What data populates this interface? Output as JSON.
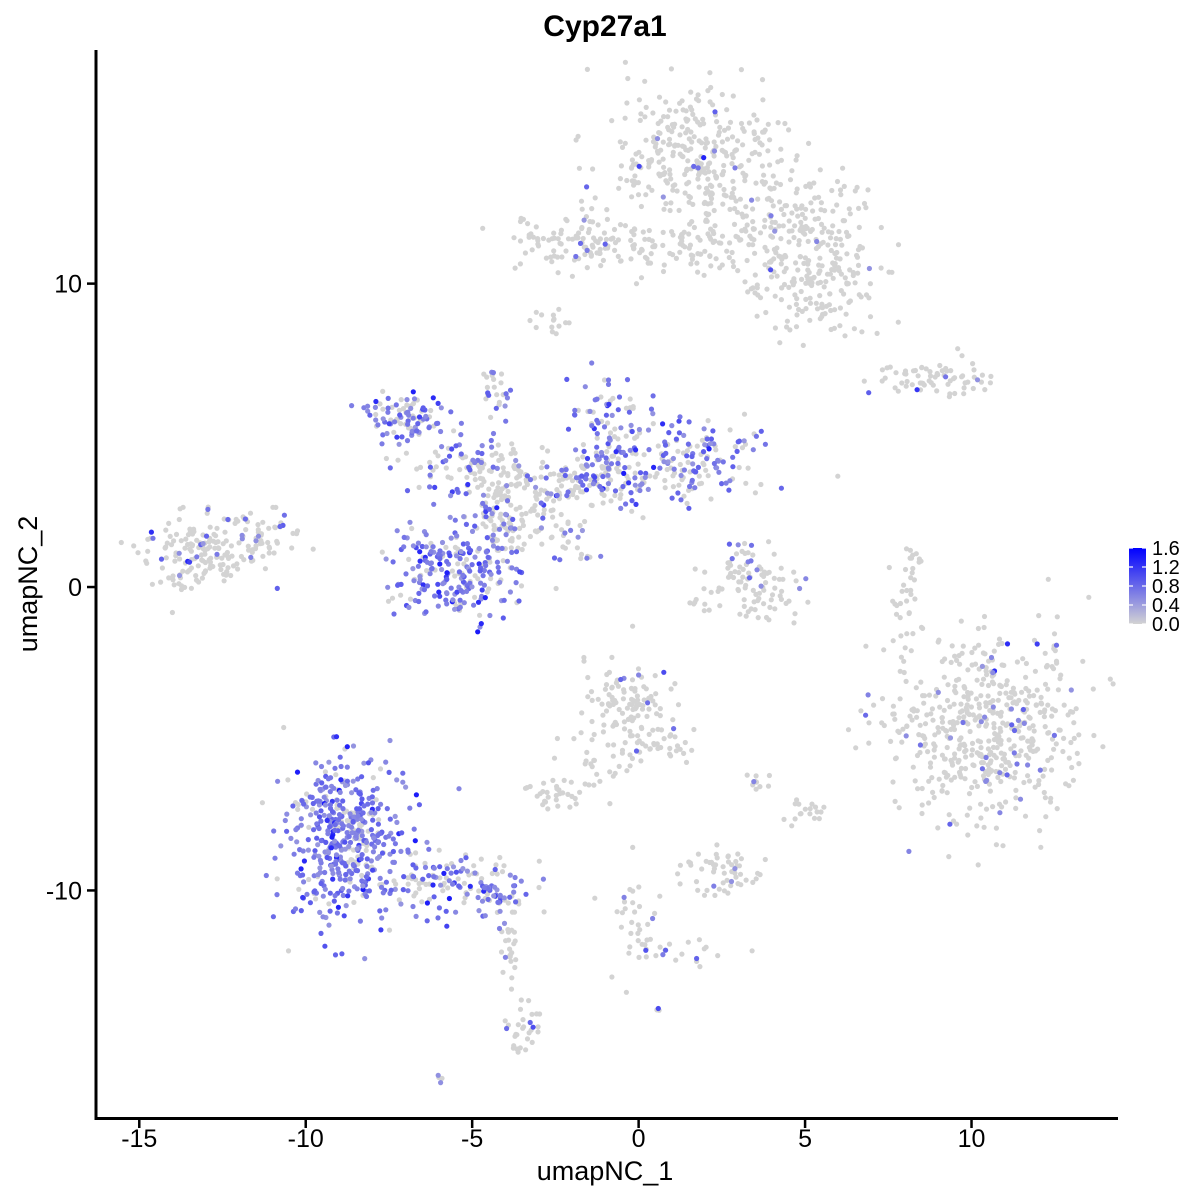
{
  "chart_data": {
    "type": "scatter",
    "title": "Cyp27a1",
    "xlabel": "umapNC_1",
    "ylabel": "umapNC_2",
    "xlim": [
      -16.3,
      14.4
    ],
    "ylim": [
      -17.5,
      17.7
    ],
    "x_ticks": [
      -15,
      -10,
      -5,
      0,
      5,
      10
    ],
    "x_tick_labels": [
      "-15",
      "-10",
      "-5",
      "0",
      "5",
      "10"
    ],
    "y_ticks": [
      -10,
      0,
      10
    ],
    "y_tick_labels": [
      "-10",
      "0",
      "10"
    ],
    "grid": false,
    "legend": {
      "position": "right",
      "type": "colorbar",
      "range": [
        0,
        1.6
      ],
      "ticks": [
        1.6,
        1.2,
        0.8,
        0.4,
        0.0
      ],
      "tick_labels": [
        "1.6",
        "1.2",
        "0.8",
        "0.4",
        "0.0"
      ],
      "low_color": "#d3d3d3",
      "high_color": "#0000ff"
    },
    "clusters": [
      {
        "name": "top-right-blob",
        "cx": 1.6,
        "cy": 14.2,
        "sx": 1.3,
        "sy": 1.1,
        "n": 320,
        "expr": 0.02
      },
      {
        "name": "top-right-wing",
        "cx": 4.4,
        "cy": 11.7,
        "sx": 1.3,
        "sy": 1.0,
        "n": 230,
        "expr": 0.02
      },
      {
        "name": "top-right-arm",
        "cx": 5.6,
        "cy": 9.8,
        "sx": 0.8,
        "sy": 0.8,
        "n": 110,
        "expr": 0.02
      },
      {
        "name": "top-left-arm",
        "cx": -1.5,
        "cy": 11.4,
        "sx": 1.2,
        "sy": 0.5,
        "n": 110,
        "expr": 0.03
      },
      {
        "name": "top-stem",
        "cx": 1.2,
        "cy": 11.2,
        "sx": 1.2,
        "sy": 0.4,
        "n": 70,
        "expr": 0.03
      },
      {
        "name": "small-top-left",
        "cx": -2.6,
        "cy": 8.9,
        "sx": 0.25,
        "sy": 0.3,
        "n": 14,
        "expr": 0.0
      },
      {
        "name": "right-strip",
        "cx": 8.8,
        "cy": 6.9,
        "sx": 0.9,
        "sy": 0.25,
        "n": 70,
        "expr": 0.02
      },
      {
        "name": "left-cluster",
        "cx": -13.0,
        "cy": 1.2,
        "sx": 0.9,
        "sy": 0.6,
        "n": 170,
        "expr": 0.12
      },
      {
        "name": "left-cluster-tail",
        "cx": -11.3,
        "cy": 1.7,
        "sx": 0.6,
        "sy": 0.5,
        "n": 40,
        "expr": 0.08
      },
      {
        "name": "center-upper-left",
        "cx": -6.8,
        "cy": 5.5,
        "sx": 0.6,
        "sy": 0.4,
        "n": 95,
        "expr": 0.6
      },
      {
        "name": "center-arm-left",
        "cx": -5.2,
        "cy": 4.1,
        "sx": 1.0,
        "sy": 0.5,
        "n": 80,
        "expr": 0.45
      },
      {
        "name": "center-hub",
        "cx": -3.3,
        "cy": 3.0,
        "sx": 0.9,
        "sy": 0.9,
        "n": 120,
        "expr": 0.12
      },
      {
        "name": "center-spike",
        "cx": -4.3,
        "cy": 6.6,
        "sx": 0.2,
        "sy": 0.5,
        "n": 25,
        "expr": 0.5
      },
      {
        "name": "center-upper-right",
        "cx": -0.9,
        "cy": 4.8,
        "sx": 0.7,
        "sy": 0.9,
        "n": 130,
        "expr": 0.6
      },
      {
        "name": "center-right-arm",
        "cx": 1.7,
        "cy": 4.2,
        "sx": 1.0,
        "sy": 0.6,
        "n": 140,
        "expr": 0.55
      },
      {
        "name": "center-bridge",
        "cx": -1.5,
        "cy": 3.5,
        "sx": 1.3,
        "sy": 0.4,
        "n": 90,
        "expr": 0.35
      },
      {
        "name": "center-lower",
        "cx": -5.4,
        "cy": 0.7,
        "sx": 1.0,
        "sy": 0.9,
        "n": 250,
        "expr": 0.72
      },
      {
        "name": "center-stalk",
        "cx": -4.2,
        "cy": 2.2,
        "sx": 0.35,
        "sy": 0.6,
        "n": 50,
        "expr": 0.25
      },
      {
        "name": "center-thin-arm",
        "cx": -2.3,
        "cy": 1.4,
        "sx": 0.6,
        "sy": 0.3,
        "n": 20,
        "expr": 0.35
      },
      {
        "name": "small-middle-right",
        "cx": 3.4,
        "cy": -0.1,
        "sx": 0.8,
        "sy": 0.5,
        "n": 80,
        "expr": 0.05
      },
      {
        "name": "middle-right-top",
        "cx": 3.1,
        "cy": 0.8,
        "sx": 0.35,
        "sy": 0.45,
        "n": 25,
        "expr": 0.35
      },
      {
        "name": "far-right-thin",
        "cx": 8.1,
        "cy": -0.4,
        "sx": 0.2,
        "sy": 0.9,
        "n": 35,
        "expr": 0.03
      },
      {
        "name": "large-right",
        "cx": 10.5,
        "cy": -4.7,
        "sx": 1.5,
        "sy": 1.5,
        "n": 550,
        "expr": 0.06
      },
      {
        "name": "small-center-blob",
        "cx": -0.4,
        "cy": -3.8,
        "sx": 0.6,
        "sy": 0.7,
        "n": 100,
        "expr": 0.02
      },
      {
        "name": "center-tail-down",
        "cx": 0.5,
        "cy": -5.2,
        "sx": 0.5,
        "sy": 0.4,
        "n": 45,
        "expr": 0.02
      },
      {
        "name": "center-arm-small",
        "cx": -2.6,
        "cy": -6.8,
        "sx": 0.4,
        "sy": 0.25,
        "n": 30,
        "expr": 0.05
      },
      {
        "name": "center-link",
        "cx": -1.3,
        "cy": -5.8,
        "sx": 0.4,
        "sy": 0.6,
        "n": 25,
        "expr": 0.02
      },
      {
        "name": "bottom-left-large",
        "cx": -8.8,
        "cy": -8.3,
        "sx": 0.9,
        "sy": 1.3,
        "n": 480,
        "expr": 0.78
      },
      {
        "name": "bottom-left-tail",
        "cx": -5.6,
        "cy": -9.8,
        "sx": 1.0,
        "sy": 0.5,
        "n": 120,
        "expr": 0.58
      },
      {
        "name": "bottom-tail-end",
        "cx": -4.2,
        "cy": -10.3,
        "sx": 0.35,
        "sy": 0.25,
        "n": 30,
        "expr": 0.85
      },
      {
        "name": "bottom-stem",
        "cx": -3.9,
        "cy": -12.3,
        "sx": 0.15,
        "sy": 0.8,
        "n": 25,
        "expr": 0.12
      },
      {
        "name": "bottom-small",
        "cx": -3.4,
        "cy": -14.6,
        "sx": 0.25,
        "sy": 0.4,
        "n": 30,
        "expr": 0.1
      },
      {
        "name": "bottom-center-small",
        "cx": 2.5,
        "cy": -9.4,
        "sx": 0.6,
        "sy": 0.35,
        "n": 55,
        "expr": 0.04
      },
      {
        "name": "bottom-center-line",
        "cx": -0.1,
        "cy": -10.8,
        "sx": 0.3,
        "sy": 1.0,
        "n": 30,
        "expr": 0.18
      },
      {
        "name": "bottom-center-arm",
        "cx": 1.5,
        "cy": -12.1,
        "sx": 0.8,
        "sy": 0.3,
        "n": 22,
        "expr": 0.15
      },
      {
        "name": "small-right-blob",
        "cx": 5.0,
        "cy": -7.4,
        "sx": 0.3,
        "sy": 0.2,
        "n": 18,
        "expr": 0.02
      },
      {
        "name": "isolated-mid",
        "cx": 3.6,
        "cy": -6.5,
        "sx": 0.25,
        "sy": 0.2,
        "n": 10,
        "expr": 0.1
      },
      {
        "name": "isolated-bottom",
        "cx": -6.0,
        "cy": -16.2,
        "sx": 0.08,
        "sy": 0.06,
        "n": 4,
        "expr": 0.6
      },
      {
        "name": "isolated-bottom2",
        "cx": 0.6,
        "cy": -13.9,
        "sx": 0.08,
        "sy": 0.06,
        "n": 3,
        "expr": 0.3
      }
    ]
  }
}
